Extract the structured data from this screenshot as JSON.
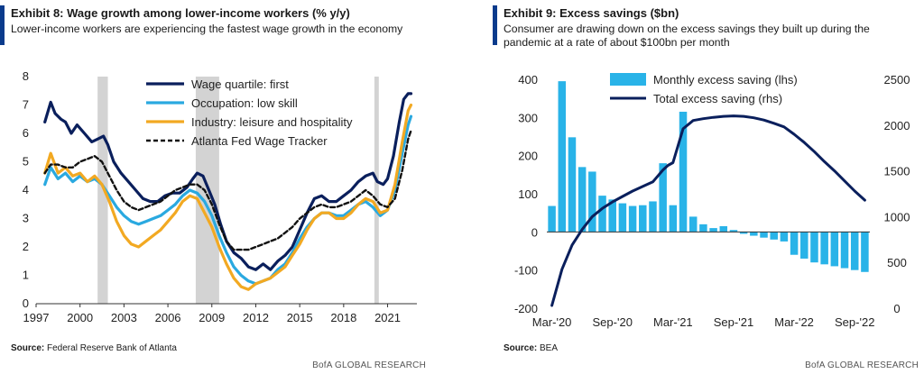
{
  "exhibit8": {
    "title": "Exhibit 8: Wage growth among lower-income workers (% y/y)",
    "subtitle": "Lower-income workers are experiencing the fastest wage growth in the economy",
    "source_label": "Source:",
    "source_text": "Federal Reserve Bank of Atlanta",
    "brand": "BofA GLOBAL RESEARCH"
  },
  "exhibit9": {
    "title": "Exhibit 9: Excess savings ($bn)",
    "subtitle": "Consumer are drawing down on the excess savings they built up during the pandemic at a rate of about $100bn per month",
    "source_label": "Source:",
    "source_text": "BEA",
    "brand": "BofA GLOBAL RESEARCH"
  },
  "colors": {
    "navy": "#0a1f5c",
    "lightblue": "#2aa9e0",
    "orange": "#f2a922",
    "black": "#111111",
    "recession": "#d3d3d3",
    "bar": "#29b3e8"
  },
  "chart_data": [
    {
      "type": "line",
      "title": "Exhibit 8: Wage growth among lower-income workers (% y/y)",
      "xlim": [
        1997,
        2023
      ],
      "ylim": [
        0,
        8
      ],
      "x_ticks": [
        "1997",
        "2000",
        "2003",
        "2006",
        "2009",
        "2012",
        "2015",
        "2018",
        "2021"
      ],
      "x_tick_values": [
        1997,
        2000,
        2003,
        2006,
        2009,
        2012,
        2015,
        2018,
        2021
      ],
      "y_ticks": [
        "0",
        "1",
        "2",
        "3",
        "4",
        "5",
        "6",
        "7",
        "8"
      ],
      "legend_position": "top-right",
      "recessions": [
        [
          2001.2,
          2001.9
        ],
        [
          2007.9,
          2009.5
        ],
        [
          2020.1,
          2020.4
        ]
      ],
      "series": [
        {
          "name": "Wage quartile: first",
          "color": "#0a1f5c",
          "style": "solid",
          "x": [
            1997.6,
            1998.0,
            1998.3,
            1998.7,
            1999.0,
            1999.4,
            1999.8,
            2000.3,
            2000.8,
            2001.2,
            2001.6,
            2001.9,
            2002.3,
            2002.8,
            2003.3,
            2003.8,
            2004.3,
            2004.8,
            2005.3,
            2005.8,
            2006.3,
            2006.8,
            2007.3,
            2007.7,
            2008.0,
            2008.4,
            2008.8,
            2009.2,
            2009.6,
            2010.0,
            2010.5,
            2011.0,
            2011.5,
            2012.0,
            2012.5,
            2013.0,
            2013.5,
            2014.0,
            2014.5,
            2015.0,
            2015.5,
            2016.0,
            2016.5,
            2017.0,
            2017.5,
            2018.0,
            2018.5,
            2019.0,
            2019.5,
            2020.0,
            2020.3,
            2020.7,
            2021.0,
            2021.4,
            2021.8,
            2022.1,
            2022.4,
            2022.6
          ],
          "values": [
            6.4,
            7.1,
            6.7,
            6.5,
            6.4,
            6.0,
            6.3,
            6.0,
            5.7,
            5.8,
            5.9,
            5.6,
            5.0,
            4.6,
            4.3,
            4.0,
            3.7,
            3.6,
            3.6,
            3.8,
            3.9,
            3.9,
            4.1,
            4.4,
            4.6,
            4.5,
            4.0,
            3.5,
            2.8,
            2.2,
            1.8,
            1.6,
            1.3,
            1.2,
            1.4,
            1.2,
            1.5,
            1.7,
            2.0,
            2.6,
            3.2,
            3.7,
            3.8,
            3.6,
            3.6,
            3.8,
            4.0,
            4.3,
            4.5,
            4.6,
            4.3,
            4.2,
            4.4,
            5.2,
            6.4,
            7.2,
            7.4,
            7.4
          ]
        },
        {
          "name": "Occupation: low skill",
          "color": "#2aa9e0",
          "style": "solid",
          "x": [
            1997.6,
            1998.0,
            1998.5,
            1999.0,
            1999.5,
            2000.0,
            2000.5,
            2001.0,
            2001.5,
            2002.0,
            2002.5,
            2003.0,
            2003.5,
            2004.0,
            2004.5,
            2005.0,
            2005.5,
            2006.0,
            2006.5,
            2007.0,
            2007.5,
            2008.0,
            2008.5,
            2009.0,
            2009.5,
            2010.0,
            2010.5,
            2011.0,
            2011.5,
            2012.0,
            2012.5,
            2013.0,
            2013.5,
            2014.0,
            2014.5,
            2015.0,
            2015.5,
            2016.0,
            2016.5,
            2017.0,
            2017.5,
            2018.0,
            2018.5,
            2019.0,
            2019.5,
            2020.0,
            2020.5,
            2021.0,
            2021.5,
            2022.0,
            2022.4,
            2022.6
          ],
          "values": [
            4.2,
            4.8,
            4.4,
            4.6,
            4.3,
            4.5,
            4.3,
            4.4,
            4.2,
            3.8,
            3.4,
            3.1,
            2.9,
            2.8,
            2.9,
            3.0,
            3.1,
            3.3,
            3.5,
            3.8,
            4.0,
            3.9,
            3.6,
            3.1,
            2.4,
            1.8,
            1.3,
            1.0,
            0.8,
            0.7,
            0.8,
            0.9,
            1.2,
            1.4,
            1.8,
            2.3,
            2.7,
            3.0,
            3.2,
            3.2,
            3.1,
            3.1,
            3.3,
            3.5,
            3.6,
            3.4,
            3.1,
            3.3,
            4.0,
            5.3,
            6.3,
            6.6
          ]
        },
        {
          "name": "Industry: leisure and hospitality",
          "color": "#f2a922",
          "style": "solid",
          "x": [
            1997.6,
            1998.0,
            1998.5,
            1999.0,
            1999.5,
            2000.0,
            2000.5,
            2001.0,
            2001.5,
            2002.0,
            2002.5,
            2003.0,
            2003.5,
            2004.0,
            2004.5,
            2005.0,
            2005.5,
            2006.0,
            2006.5,
            2007.0,
            2007.5,
            2008.0,
            2008.5,
            2009.0,
            2009.5,
            2010.0,
            2010.5,
            2011.0,
            2011.5,
            2012.0,
            2012.5,
            2013.0,
            2013.5,
            2014.0,
            2014.5,
            2015.0,
            2015.5,
            2016.0,
            2016.5,
            2017.0,
            2017.5,
            2018.0,
            2018.5,
            2019.0,
            2019.5,
            2020.0,
            2020.5,
            2021.0,
            2021.5,
            2022.0,
            2022.4,
            2022.6
          ],
          "values": [
            4.6,
            5.3,
            4.6,
            4.8,
            4.5,
            4.6,
            4.3,
            4.5,
            4.2,
            3.6,
            2.9,
            2.4,
            2.1,
            2.0,
            2.2,
            2.4,
            2.6,
            2.9,
            3.2,
            3.6,
            3.8,
            3.7,
            3.2,
            2.7,
            2.0,
            1.4,
            0.9,
            0.6,
            0.5,
            0.7,
            0.8,
            0.9,
            1.1,
            1.3,
            1.7,
            2.1,
            2.6,
            3.0,
            3.2,
            3.2,
            3.0,
            3.0,
            3.2,
            3.5,
            3.7,
            3.6,
            3.2,
            3.3,
            4.2,
            5.7,
            6.8,
            7.0
          ]
        },
        {
          "name": "Atlanta Fed Wage Tracker",
          "color": "#111111",
          "style": "dashed",
          "x": [
            1997.6,
            1998.0,
            1998.5,
            1999.0,
            1999.5,
            2000.0,
            2000.5,
            2001.0,
            2001.5,
            2002.0,
            2002.5,
            2003.0,
            2003.5,
            2004.0,
            2004.5,
            2005.0,
            2005.5,
            2006.0,
            2006.5,
            2007.0,
            2007.5,
            2008.0,
            2008.5,
            2009.0,
            2009.5,
            2010.0,
            2010.5,
            2011.0,
            2011.5,
            2012.0,
            2012.5,
            2013.0,
            2013.5,
            2014.0,
            2014.5,
            2015.0,
            2015.5,
            2016.0,
            2016.5,
            2017.0,
            2017.5,
            2018.0,
            2018.5,
            2019.0,
            2019.5,
            2020.0,
            2020.5,
            2021.0,
            2021.5,
            2022.0,
            2022.4,
            2022.6
          ],
          "values": [
            4.6,
            4.9,
            4.9,
            4.8,
            4.8,
            5.0,
            5.1,
            5.2,
            5.0,
            4.5,
            4.0,
            3.6,
            3.4,
            3.3,
            3.4,
            3.5,
            3.6,
            3.8,
            4.0,
            4.1,
            4.2,
            4.2,
            4.0,
            3.5,
            2.8,
            2.2,
            1.9,
            1.9,
            1.9,
            2.0,
            2.1,
            2.2,
            2.3,
            2.5,
            2.7,
            3.0,
            3.2,
            3.4,
            3.5,
            3.4,
            3.4,
            3.5,
            3.6,
            3.8,
            4.0,
            3.8,
            3.5,
            3.4,
            3.7,
            4.7,
            5.8,
            6.1
          ]
        }
      ]
    },
    {
      "type": "bar+line",
      "title": "Exhibit 9: Excess savings ($bn)",
      "categories_count": 32,
      "x_ticks": [
        "Mar-'20",
        "Sep-'20",
        "Mar-'21",
        "Sep-'21",
        "Mar-'22",
        "Sep-'22"
      ],
      "x_tick_indices": [
        0,
        6,
        12,
        18,
        24,
        30
      ],
      "ylim_left": [
        -200,
        400
      ],
      "y_ticks_left": [
        "-200",
        "-100",
        "0",
        "100",
        "200",
        "300",
        "400"
      ],
      "ylim_right": [
        0,
        2500
      ],
      "y_ticks_right": [
        "0",
        "500",
        "1000",
        "1500",
        "2000",
        "2500"
      ],
      "legend_position": "top",
      "series": [
        {
          "name": "Monthly excess saving (lhs)",
          "type": "bar",
          "axis": "left",
          "color": "#29b3e8",
          "values": [
            68,
            395,
            248,
            170,
            158,
            95,
            85,
            75,
            68,
            70,
            80,
            180,
            70,
            315,
            40,
            20,
            10,
            15,
            5,
            -5,
            -10,
            -15,
            -20,
            -25,
            -60,
            -70,
            -80,
            -85,
            -90,
            -95,
            -100,
            -105
          ]
        },
        {
          "name": "Total excess saving (rhs)",
          "type": "line",
          "axis": "right",
          "color": "#0a1f5c",
          "x": [
            0,
            1,
            2,
            3,
            4,
            5,
            6,
            7,
            8,
            9,
            10,
            11,
            11.5,
            12,
            13,
            14,
            15,
            16,
            17,
            18,
            19,
            20,
            21,
            22,
            23,
            24,
            25,
            26,
            27,
            28,
            29,
            30,
            31
          ],
          "values": [
            30,
            425,
            690,
            860,
            1000,
            1090,
            1160,
            1220,
            1280,
            1330,
            1380,
            1510,
            1560,
            1590,
            1960,
            2050,
            2070,
            2085,
            2095,
            2100,
            2095,
            2080,
            2055,
            2020,
            1980,
            1900,
            1810,
            1710,
            1600,
            1500,
            1390,
            1280,
            1180
          ]
        }
      ]
    }
  ]
}
